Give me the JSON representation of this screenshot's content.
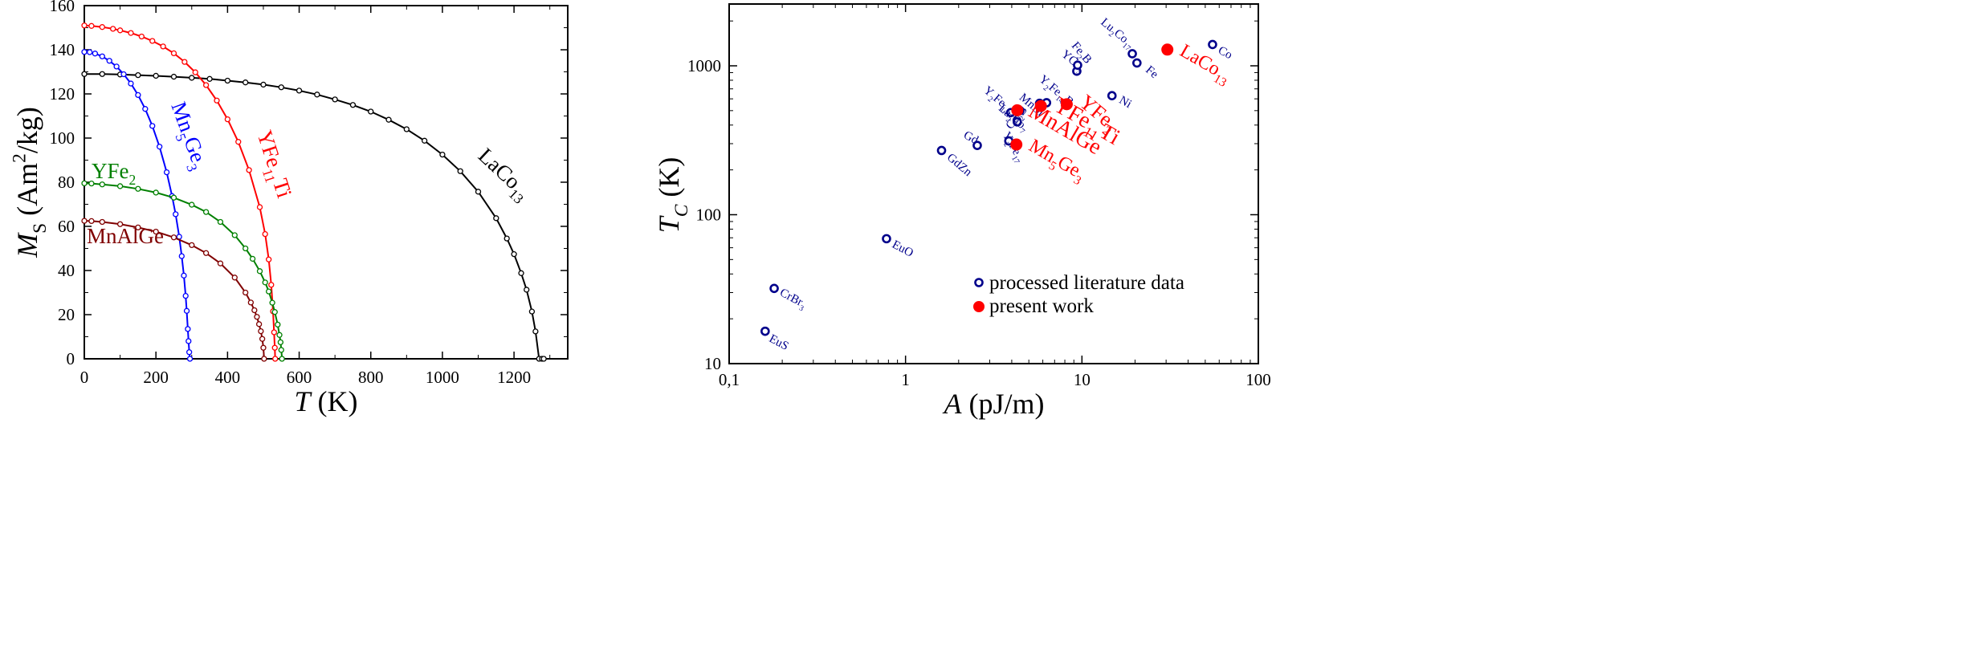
{
  "chart_data": [
    {
      "type": "line",
      "xlabel": "T (K)",
      "ylabel": "M_S (Am²/kg)",
      "xlim": [
        0,
        1350
      ],
      "ylim": [
        0,
        160
      ],
      "xticks": [
        "0",
        "200",
        "400",
        "600",
        "800",
        "1000",
        "1200"
      ],
      "yticks": [
        "0",
        "20",
        "40",
        "60",
        "80",
        "100",
        "120",
        "140",
        "160"
      ],
      "grid": false,
      "series": [
        {
          "name": "LaCo13",
          "color": "#000000",
          "x": [
            0,
            50,
            100,
            150,
            200,
            250,
            300,
            350,
            400,
            450,
            500,
            550,
            600,
            650,
            700,
            750,
            800,
            850,
            900,
            950,
            1000,
            1050,
            1100,
            1150,
            1180,
            1200,
            1220,
            1235,
            1250,
            1260,
            1270,
            1278,
            1283
          ],
          "y": [
            129,
            129,
            128.8,
            128.5,
            128.2,
            127.8,
            127.3,
            126.8,
            126.0,
            125.2,
            124.2,
            123.0,
            121.5,
            119.7,
            117.5,
            115.0,
            112.0,
            108.3,
            104.0,
            98.8,
            92.5,
            85.0,
            75.7,
            63.7,
            54.5,
            47.4,
            38.8,
            31.3,
            21.4,
            12.4,
            0,
            0,
            0
          ]
        },
        {
          "name": "YFe11Ti",
          "color": "#ff0000",
          "x": [
            0,
            20,
            50,
            80,
            100,
            130,
            160,
            190,
            220,
            250,
            280,
            310,
            340,
            370,
            400,
            430,
            460,
            490,
            505,
            515,
            522,
            527,
            530,
            532,
            533
          ],
          "y": [
            151,
            150.8,
            150.3,
            149.5,
            148.8,
            147.6,
            146.0,
            144.0,
            141.5,
            138.4,
            134.5,
            129.8,
            124.0,
            117.0,
            108.5,
            98.3,
            85.5,
            68.7,
            56.5,
            45.0,
            33.5,
            21.5,
            12.0,
            5.0,
            0
          ]
        },
        {
          "name": "Mn5Ge3",
          "color": "#0000ff",
          "x": [
            0,
            15,
            30,
            50,
            70,
            90,
            110,
            130,
            150,
            170,
            190,
            210,
            230,
            245,
            255,
            265,
            272,
            278,
            283,
            286,
            289,
            291,
            293,
            295
          ],
          "y": [
            139,
            138.9,
            138.3,
            137.0,
            135.0,
            132.4,
            128.9,
            124.7,
            119.5,
            113.2,
            105.5,
            96.1,
            84.5,
            73.7,
            65.5,
            55.3,
            46.5,
            37.7,
            28.5,
            21.7,
            13.5,
            8.0,
            3.0,
            0
          ]
        },
        {
          "name": "YFe2",
          "color": "#008000",
          "x": [
            0,
            20,
            50,
            100,
            150,
            200,
            250,
            300,
            340,
            380,
            420,
            450,
            470,
            490,
            505,
            515,
            525,
            532,
            540,
            545,
            548,
            550,
            552
          ],
          "y": [
            79.5,
            79.4,
            79.0,
            78.2,
            77.0,
            75.3,
            73.0,
            69.8,
            66.5,
            62.0,
            56.0,
            50.0,
            45.3,
            39.7,
            34.6,
            30.5,
            25.4,
            21.2,
            15.5,
            10.8,
            7.5,
            4.0,
            0
          ]
        },
        {
          "name": "MnAlGe",
          "color": "#800000",
          "x": [
            0,
            20,
            50,
            100,
            150,
            200,
            250,
            300,
            340,
            380,
            420,
            450,
            465,
            475,
            482,
            488,
            493,
            497,
            500,
            502
          ],
          "y": [
            62.5,
            62.4,
            62.0,
            61.0,
            59.5,
            57.6,
            55.0,
            51.5,
            47.9,
            43.2,
            36.8,
            30.0,
            25.5,
            22.0,
            19.0,
            15.7,
            12.5,
            9.0,
            5.0,
            0
          ]
        }
      ],
      "annotations": [
        "LaCo13",
        "YFe11Ti",
        "Mn5Ge3",
        "YFe2",
        "MnAlGe"
      ]
    },
    {
      "type": "scatter",
      "xlabel": "A (pJ/m)",
      "ylabel": "T_C (K)",
      "xscale": "log",
      "yscale": "log",
      "xlim": [
        0.1,
        100
      ],
      "ylim": [
        10,
        2600
      ],
      "xticks": [
        "0,1",
        "1",
        "10",
        "100"
      ],
      "yticks": [
        "10",
        "100",
        "1000"
      ],
      "legend_position": "bottom-right",
      "grid": false,
      "series": [
        {
          "name": "processed literature data",
          "marker": "open-circle",
          "color": "#00008b",
          "points": [
            {
              "label": "EuS",
              "x": 0.16,
              "y": 16.5
            },
            {
              "label": "CrBr3",
              "x": 0.18,
              "y": 32
            },
            {
              "label": "EuO",
              "x": 0.78,
              "y": 69
            },
            {
              "label": "GdZn",
              "x": 1.6,
              "y": 270
            },
            {
              "label": "Gd",
              "x": 2.55,
              "y": 292
            },
            {
              "label": "Y2Fe17",
              "x": 3.85,
              "y": 313
            },
            {
              "label": "Co2B",
              "x": 4.3,
              "y": 420
            },
            {
              "label": "La2Co7",
              "x": 3.95,
              "y": 485
            },
            {
              "label": "Y2Fe14Si3",
              "x": 4.45,
              "y": 500
            },
            {
              "label": "MnBi",
              "x": 5.75,
              "y": 560
            },
            {
              "label": "Y2Fe14B",
              "x": 6.3,
              "y": 565
            },
            {
              "label": "Ni",
              "x": 14.8,
              "y": 630
            },
            {
              "label": "YCo5",
              "x": 9.35,
              "y": 920
            },
            {
              "label": "Fe2B",
              "x": 9.45,
              "y": 1010
            },
            {
              "label": "Fe",
              "x": 20.5,
              "y": 1045
            },
            {
              "label": "Lu2Co17",
              "x": 19.3,
              "y": 1205
            },
            {
              "label": "Co",
              "x": 55,
              "y": 1390
            }
          ]
        },
        {
          "name": "present work",
          "marker": "filled-circle",
          "color": "#ff0000",
          "points": [
            {
              "label": "MnAlGe",
              "x": 4.3,
              "y": 503
            },
            {
              "label": "Mn5Ge3",
              "x": 4.25,
              "y": 296
            },
            {
              "label": "YFe11Ti",
              "x": 5.85,
              "y": 537
            },
            {
              "label": "YFe2",
              "x": 8.2,
              "y": 552
            },
            {
              "label": "LaCo13",
              "x": 30.5,
              "y": 1285
            }
          ]
        }
      ]
    }
  ]
}
